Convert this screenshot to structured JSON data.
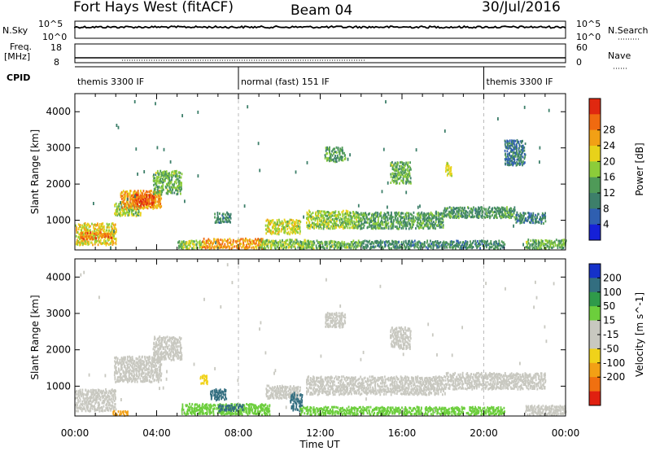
{
  "header": {
    "station": "Fort Hays West (fitACF)",
    "beam": "Beam 04",
    "date": "30/Jul/2016"
  },
  "params": {
    "nsky_label": "N.Sky",
    "nsky_ticks": [
      "10^5",
      "10^0"
    ],
    "nsearch_label": "N.Search",
    "nsearch_ticks": [
      "10^5",
      "10^0"
    ],
    "freq_label": "Freq.",
    "freq_unit": "[MHz]",
    "freq_ticks": [
      "18",
      "8"
    ],
    "nave_label": "Nave",
    "nave_ticks": [
      "60",
      "0"
    ],
    "cpid_label": "CPID",
    "cpid_segments": [
      {
        "label": "themis 3300 IF",
        "start_h": 0,
        "end_h": 8
      },
      {
        "label": "normal (fast) 151 IF",
        "start_h": 8,
        "end_h": 20
      },
      {
        "label": "themis 3300 IF",
        "start_h": 20,
        "end_h": 24
      }
    ]
  },
  "time_axis": {
    "title": "Time UT",
    "ticks": [
      "00:00",
      "04:00",
      "08:00",
      "12:00",
      "16:00",
      "20:00",
      "00:00"
    ]
  },
  "chart_data": [
    {
      "type": "heatmap",
      "name": "power",
      "xlabel": "Time UT",
      "ylabel": "Slant Range [km]",
      "xlim": [
        0,
        24
      ],
      "ylim": [
        180,
        4500
      ],
      "yticks": [
        "1000",
        "2000",
        "3000",
        "4000"
      ],
      "colorbar": {
        "label": "Power [dB]",
        "ticks": [
          "4",
          "8",
          "12",
          "16",
          "20",
          "24",
          "28"
        ],
        "colors": [
          "#1520d8",
          "#2f5fb0",
          "#3d7f6a",
          "#4f9a58",
          "#8ccc3a",
          "#e8d21a",
          "#f2a015",
          "#f06a10",
          "#e02810"
        ]
      },
      "regions": [
        {
          "t0": 0.0,
          "t1": 2.0,
          "r0": 300,
          "r1": 900,
          "v": 20
        },
        {
          "t0": 0.2,
          "t1": 1.8,
          "r0": 450,
          "r1": 650,
          "v": 26
        },
        {
          "t0": 1.9,
          "t1": 3.2,
          "r0": 1100,
          "r1": 1450,
          "v": 16
        },
        {
          "t0": 2.2,
          "t1": 4.2,
          "r0": 1300,
          "r1": 1800,
          "v": 24
        },
        {
          "t0": 2.8,
          "t1": 3.9,
          "r0": 1400,
          "r1": 1700,
          "v": 28
        },
        {
          "t0": 3.8,
          "t1": 5.2,
          "r0": 1700,
          "r1": 2350,
          "v": 14
        },
        {
          "t0": 5.0,
          "t1": 6.2,
          "r0": 200,
          "r1": 420,
          "v": 16
        },
        {
          "t0": 6.2,
          "t1": 9.2,
          "r0": 200,
          "r1": 480,
          "v": 24
        },
        {
          "t0": 6.8,
          "t1": 7.6,
          "r0": 900,
          "r1": 1200,
          "v": 10
        },
        {
          "t0": 9.3,
          "t1": 11.0,
          "r0": 600,
          "r1": 1000,
          "v": 18
        },
        {
          "t0": 9.0,
          "t1": 11.5,
          "r0": 200,
          "r1": 450,
          "v": 16
        },
        {
          "t0": 11.3,
          "t1": 13.8,
          "r0": 750,
          "r1": 1250,
          "v": 16
        },
        {
          "t0": 11.0,
          "t1": 14.0,
          "r0": 200,
          "r1": 420,
          "v": 14
        },
        {
          "t0": 13.8,
          "t1": 18.0,
          "r0": 750,
          "r1": 1200,
          "v": 12
        },
        {
          "t0": 18.0,
          "t1": 21.5,
          "r0": 1050,
          "r1": 1350,
          "v": 11
        },
        {
          "t0": 21.5,
          "t1": 23.0,
          "r0": 900,
          "r1": 1200,
          "v": 9
        },
        {
          "t0": 14.0,
          "t1": 21.0,
          "r0": 200,
          "r1": 420,
          "v": 10
        },
        {
          "t0": 12.2,
          "t1": 13.2,
          "r0": 2600,
          "r1": 3000,
          "v": 12
        },
        {
          "t0": 15.4,
          "t1": 16.4,
          "r0": 2000,
          "r1": 2600,
          "v": 14
        },
        {
          "t0": 18.1,
          "t1": 18.4,
          "r0": 2200,
          "r1": 2600,
          "v": 18
        },
        {
          "t0": 21.0,
          "t1": 22.0,
          "r0": 2500,
          "r1": 3200,
          "v": 8
        },
        {
          "t0": 22.0,
          "t1": 24.0,
          "r0": 200,
          "r1": 450,
          "v": 14
        }
      ]
    },
    {
      "type": "heatmap",
      "name": "velocity",
      "xlabel": "Time UT",
      "ylabel": "Slant Range [km]",
      "xlim": [
        0,
        24
      ],
      "ylim": [
        180,
        4500
      ],
      "yticks": [
        "1000",
        "2000",
        "3000",
        "4000"
      ],
      "colorbar": {
        "label": "Velocity [m s^-1]",
        "ticks": [
          "200",
          "100",
          "50",
          "15",
          "-15",
          "-50",
          "-100",
          "-200"
        ],
        "colors": [
          "#1531c9",
          "#336e80",
          "#2f9a4a",
          "#6cce3c",
          "#c8c8c0",
          "#c8c8c0",
          "#f0d21a",
          "#f2a015",
          "#f07010",
          "#e02010"
        ]
      },
      "regions": [
        {
          "t0": 0.0,
          "t1": 2.0,
          "r0": 300,
          "r1": 900,
          "v": 0
        },
        {
          "t0": 1.9,
          "t1": 4.2,
          "r0": 1100,
          "r1": 1800,
          "v": 0
        },
        {
          "t0": 3.8,
          "t1": 5.2,
          "r0": 1700,
          "r1": 2350,
          "v": 0
        },
        {
          "t0": 1.8,
          "t1": 2.6,
          "r0": 180,
          "r1": 300,
          "v": -120
        },
        {
          "t0": 5.2,
          "t1": 9.5,
          "r0": 200,
          "r1": 500,
          "v": 40
        },
        {
          "t0": 7.0,
          "t1": 8.2,
          "r0": 300,
          "r1": 480,
          "v": 120
        },
        {
          "t0": 6.6,
          "t1": 7.4,
          "r0": 600,
          "r1": 900,
          "v": 150
        },
        {
          "t0": 9.3,
          "t1": 11.0,
          "r0": 650,
          "r1": 1000,
          "v": 0
        },
        {
          "t0": 10.5,
          "t1": 11.1,
          "r0": 300,
          "r1": 800,
          "v": 130
        },
        {
          "t0": 11.3,
          "t1": 18.0,
          "r0": 750,
          "r1": 1250,
          "v": 0
        },
        {
          "t0": 18.0,
          "t1": 23.0,
          "r0": 900,
          "r1": 1350,
          "v": 0
        },
        {
          "t0": 12.2,
          "t1": 13.2,
          "r0": 2600,
          "r1": 3000,
          "v": 0
        },
        {
          "t0": 15.4,
          "t1": 16.4,
          "r0": 2000,
          "r1": 2600,
          "v": 0
        },
        {
          "t0": 11.0,
          "t1": 21.0,
          "r0": 200,
          "r1": 420,
          "v": 30
        },
        {
          "t0": 22.0,
          "t1": 24.0,
          "r0": 200,
          "r1": 450,
          "v": 0
        },
        {
          "t0": 6.1,
          "t1": 6.5,
          "r0": 1050,
          "r1": 1300,
          "v": -80
        }
      ]
    }
  ]
}
